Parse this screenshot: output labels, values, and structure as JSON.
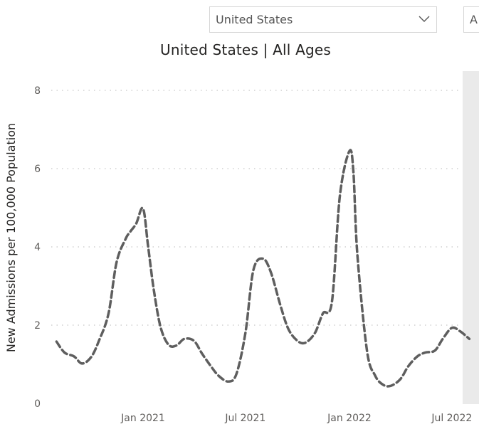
{
  "filters": {
    "geography_value": "United States",
    "second_value": "A",
    "icons": {
      "geography": "chevron-down-icon"
    }
  },
  "chart_data": {
    "type": "line",
    "title": "United States | All Ages",
    "xlabel": "",
    "ylabel": "New Admissions per 100,000 Population",
    "ylim": [
      0,
      8
    ],
    "yticks": [
      0,
      2,
      4,
      6,
      8
    ],
    "xticks": [
      "Jan 2021",
      "Jul 2021",
      "Jan 2022",
      "Jul 2022"
    ],
    "grid": "horizontal-dotted",
    "series": [
      {
        "color": "#5e5e5e",
        "style": "dashed",
        "x": [
          "2020-08-01",
          "2020-08-15",
          "2020-09-01",
          "2020-09-15",
          "2020-10-01",
          "2020-10-15",
          "2020-11-01",
          "2020-11-15",
          "2020-12-01",
          "2020-12-10",
          "2020-12-20",
          "2021-01-01",
          "2021-01-10",
          "2021-01-20",
          "2021-02-01",
          "2021-02-15",
          "2021-03-01",
          "2021-03-15",
          "2021-04-01",
          "2021-04-15",
          "2021-05-01",
          "2021-05-15",
          "2021-06-01",
          "2021-06-15",
          "2021-07-01",
          "2021-07-15",
          "2021-08-01",
          "2021-08-15",
          "2021-09-01",
          "2021-09-15",
          "2021-10-01",
          "2021-10-15",
          "2021-11-01",
          "2021-11-15",
          "2021-12-01",
          "2021-12-15",
          "2022-01-01",
          "2022-01-08",
          "2022-01-15",
          "2022-02-01",
          "2022-02-15",
          "2022-03-01",
          "2022-03-15",
          "2022-04-01",
          "2022-04-15",
          "2022-05-01",
          "2022-05-15",
          "2022-06-01",
          "2022-06-15",
          "2022-07-01",
          "2022-07-15",
          "2022-08-01"
        ],
        "values": [
          1.58,
          1.3,
          1.2,
          1.02,
          1.18,
          1.6,
          2.3,
          3.6,
          4.2,
          4.4,
          4.6,
          4.98,
          4.0,
          2.9,
          1.95,
          1.5,
          1.48,
          1.65,
          1.6,
          1.28,
          0.95,
          0.7,
          0.56,
          0.75,
          1.8,
          3.4,
          3.7,
          3.35,
          2.5,
          1.9,
          1.6,
          1.55,
          1.8,
          2.3,
          2.6,
          5.3,
          6.45,
          5.9,
          3.8,
          1.35,
          0.72,
          0.48,
          0.45,
          0.62,
          0.95,
          1.2,
          1.3,
          1.35,
          1.65,
          1.93,
          1.85,
          1.65
        ]
      }
    ]
  }
}
